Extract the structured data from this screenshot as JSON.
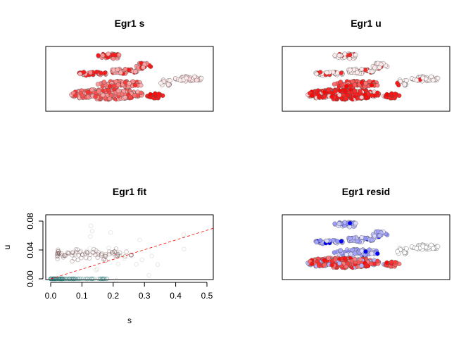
{
  "chart_data": [
    {
      "type": "scatter",
      "title": "Egr1 s",
      "xlabel": "",
      "ylabel": "",
      "axes_shown": false,
      "color_scale": [
        "#ffffff",
        "#ff0000"
      ]
    },
    {
      "type": "scatter",
      "title": "Egr1 u",
      "xlabel": "",
      "ylabel": "",
      "axes_shown": false,
      "color_scale": [
        "#ffffff",
        "#ff0000"
      ]
    },
    {
      "type": "scatter",
      "title": "Egr1 fit",
      "xlabel": "s",
      "ylabel": "u",
      "xlim": [
        0,
        0.52
      ],
      "ylim": [
        0,
        0.088
      ],
      "x_ticks": [
        "0.0",
        "0.1",
        "0.2",
        "0.3",
        "0.4",
        "0.5"
      ],
      "y_ticks": [
        "0.00",
        "0.04",
        "0.08"
      ],
      "fit_line": {
        "x": [
          0,
          0.52
        ],
        "y": [
          0,
          0.07
        ],
        "color": "#ff0000",
        "style": "dashed"
      },
      "point_groups": [
        {
          "x_range": [
            0.0,
            0.18
          ],
          "y": 0.0,
          "count": 80,
          "color": "#1a6b6b"
        },
        {
          "x_range": [
            0.02,
            0.26
          ],
          "y_center": 0.034,
          "y_spread": 0.004,
          "count": 80,
          "color": "#5a2f2f"
        },
        {
          "x_range": [
            0.12,
            0.45
          ],
          "y_center": 0.04,
          "y_spread": 0.02,
          "count": 22,
          "color": "#a8b39a"
        }
      ]
    },
    {
      "type": "scatter",
      "title": "Egr1 resid",
      "xlabel": "",
      "ylabel": "",
      "axes_shown": false,
      "color_scale": [
        "#0000ff",
        "#ffffff",
        "#ff0000"
      ]
    }
  ]
}
